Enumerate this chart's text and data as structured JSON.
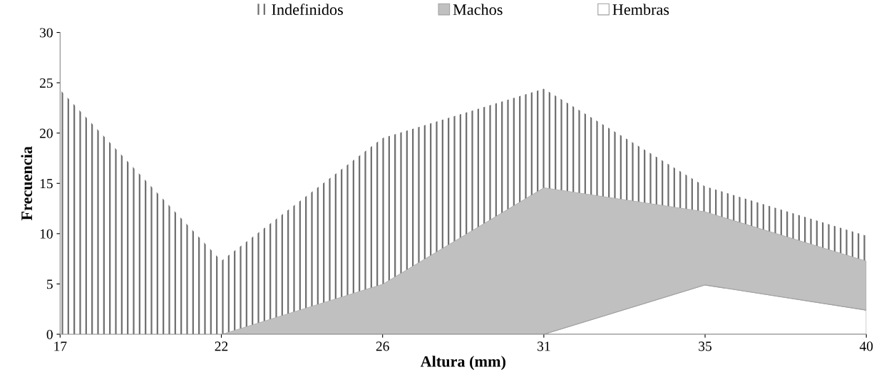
{
  "chart_data": {
    "type": "area",
    "stacked": true,
    "xlabel": "Altura (mm)",
    "ylabel": "Frecuencia",
    "categories": [
      "17",
      "22",
      "26",
      "31",
      "35",
      "40"
    ],
    "series": [
      {
        "name": "Hembras",
        "color": "#ffffff",
        "values": [
          0,
          0,
          0,
          0,
          4.9,
          2.4
        ]
      },
      {
        "name": "Machos",
        "color": "#c0c0c0",
        "values": [
          0,
          0,
          5,
          14.6,
          7.3,
          4.9
        ]
      },
      {
        "name": "Indefinidos",
        "color": "#6e6e6e",
        "values": [
          24.3,
          7.3,
          14.5,
          9.8,
          2.5,
          2.5
        ]
      }
    ],
    "ylim": [
      0,
      30
    ],
    "yticks": [
      0,
      5,
      10,
      15,
      20,
      25,
      30
    ],
    "grid": false,
    "legend": "top"
  }
}
